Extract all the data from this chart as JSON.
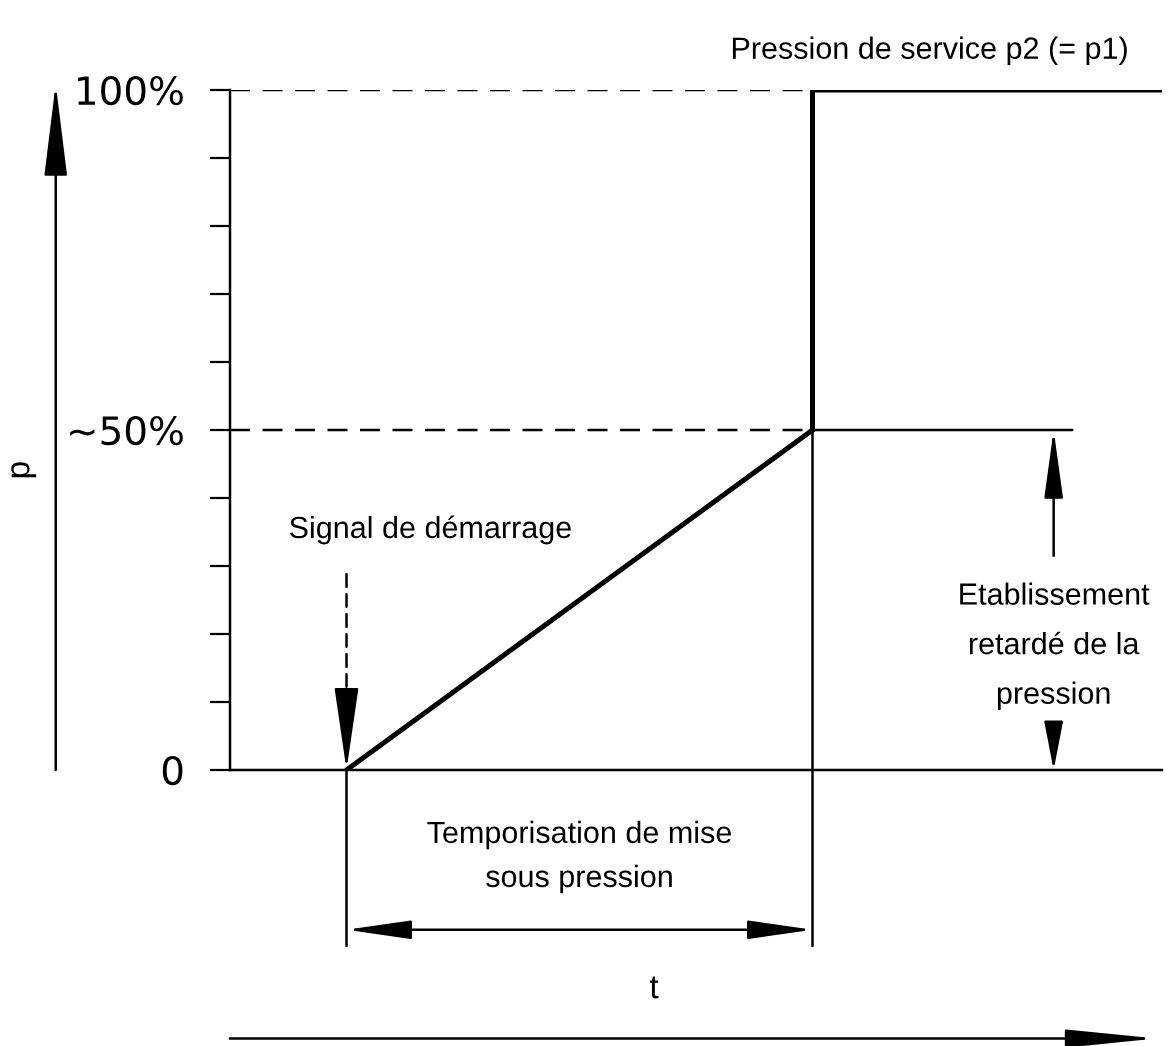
{
  "chart_data": {
    "type": "line",
    "ylabel": "p",
    "categories": [
      null,
      null,
      null,
      null,
      null,
      null,
      null,
      null
    ],
    "series": [
      {
        "color": "#000000",
        "values": [
          0,
          12.5,
          25,
          37.5,
          50,
          null,
          null,
          null
        ]
      },
      {
        "type": "step",
        "color": "#000000",
        "values": [
          null,
          null,
          null,
          null,
          50,
          100,
          100,
          100
        ]
      }
    ],
    "ylim": [
      0,
      100
    ],
    "yticks": [
      0,
      {
        "value": 10,
        "label": null
      },
      {
        "value": 20,
        "label": null
      },
      {
        "value": 30,
        "label": null
      },
      {
        "value": 40,
        "label": null
      },
      {
        "value": 50,
        "label": "~50%"
      },
      {
        "value": 60,
        "label": null
      },
      {
        "value": 70,
        "label": null
      },
      {
        "value": 80,
        "label": null
      },
      {
        "value": 90,
        "label": null
      },
      {
        "value": 100,
        "label": "100%"
      }
    ],
    "tick_labels": "y",
    "ref_lines": [
      {
        "axis": "y",
        "value": 100,
        "label": "Pression de service p2 (= p1)",
        "color": "#000000",
        "line_style": "dashed"
      },
      {
        "axis": "y",
        "value": 50,
        "color": "#000000",
        "line_style": "dashed"
      }
    ],
    "annotations": [
      "Signal de démarrage",
      "Temporisation de mise\nsous pression",
      "Etablissement\nretardé de la\npression",
      "t"
    ]
  }
}
